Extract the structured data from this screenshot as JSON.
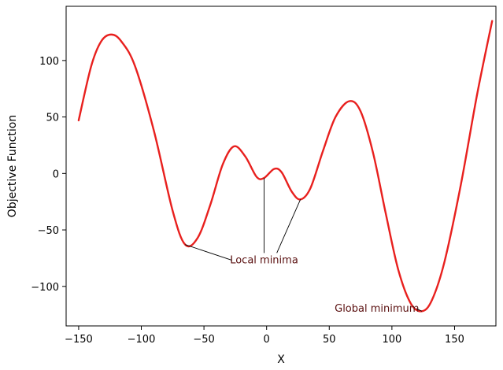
{
  "chart_data": {
    "type": "line",
    "xlabel": "X",
    "ylabel": "Objective Function",
    "xlim": [
      -160,
      183
    ],
    "ylim": [
      -135,
      148
    ],
    "xticks": [
      -150,
      -100,
      -50,
      0,
      50,
      100,
      150
    ],
    "yticks": [
      -100,
      -50,
      0,
      50,
      100
    ],
    "xtick_labels": [
      "−150",
      "−100",
      "−50",
      "0",
      "50",
      "100",
      "150"
    ],
    "ytick_labels": [
      "−100",
      "−50",
      "0",
      "50",
      "100"
    ],
    "grid": false,
    "line_color": "#e8201e",
    "series": [
      {
        "x": [
          -150,
          -140,
          -132,
          -124,
          -116,
          -105,
          -90,
          -75,
          -65,
          -55,
          -45,
          -35,
          -26,
          -17,
          -8,
          -2,
          6,
          12,
          20,
          27,
          35,
          45,
          55,
          66,
          75,
          85,
          95,
          105,
          115,
          124,
          132,
          142,
          155,
          168,
          180
        ],
        "y": [
          47,
          95,
          117,
          123,
          117,
          95,
          38,
          -33,
          -63,
          -57,
          -28,
          8,
          24,
          15,
          -3,
          -4,
          4,
          1,
          -16,
          -23,
          -13,
          20,
          50,
          64,
          55,
          18,
          -35,
          -85,
          -115,
          -122,
          -112,
          -78,
          -10,
          70,
          135
        ]
      }
    ],
    "annotations": [
      {
        "text": "Local minima",
        "text_at": [
          -2,
          -76
        ],
        "targets": [
          [
            -65,
            -63
          ],
          [
            -2,
            -4
          ],
          [
            27,
            -23
          ]
        ]
      },
      {
        "text": "Global minimum",
        "text_at": [
          88,
          -119
        ],
        "targets": [
          [
            124,
            -122
          ]
        ]
      }
    ]
  }
}
